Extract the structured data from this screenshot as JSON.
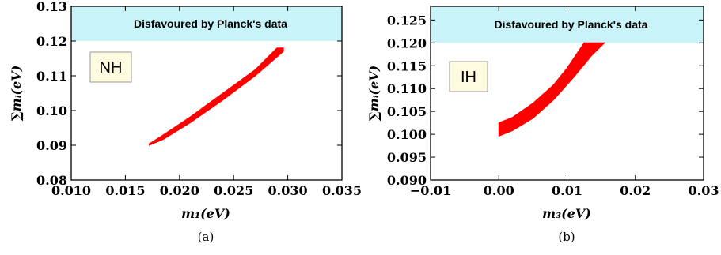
{
  "chart_data": [
    {
      "type": "area",
      "panel_tag": "NH",
      "caption": "(a)",
      "xlabel": "m₁(eV)",
      "ylabel": "∑mᵢ(eV)",
      "xlim": [
        0.01,
        0.035
      ],
      "ylim": [
        0.08,
        0.13
      ],
      "xticks": [
        "0.010",
        "0.015",
        "0.020",
        "0.025",
        "0.030",
        "0.035"
      ],
      "xtick_values": [
        0.01,
        0.015,
        0.02,
        0.025,
        0.03,
        0.035
      ],
      "yticks": [
        "0.08",
        "0.09",
        "0.10",
        "0.11",
        "0.12",
        "0.13"
      ],
      "ytick_values": [
        0.08,
        0.09,
        0.1,
        0.11,
        0.12,
        0.13
      ],
      "annotation": "Disfavoured by Planck's data",
      "excluded_region": {
        "y_from": 0.12,
        "y_to": 0.13,
        "color": "#c8f3f8"
      },
      "allowed_region_color": "#ff0000",
      "series": [
        {
          "lower": [
            [
              0.0172,
              0.09
            ],
            [
              0.0185,
              0.0917
            ],
            [
              0.021,
              0.0965
            ],
            [
              0.024,
              0.103
            ],
            [
              0.027,
              0.11
            ],
            [
              0.0296,
              0.117
            ],
            [
              0.0296,
              0.118
            ]
          ],
          "upper": [
            [
              0.0172,
              0.0904
            ],
            [
              0.0185,
              0.093
            ],
            [
              0.021,
              0.0982
            ],
            [
              0.024,
              0.105
            ],
            [
              0.027,
              0.1118
            ],
            [
              0.029,
              0.118
            ]
          ]
        }
      ],
      "grid": false
    },
    {
      "type": "area",
      "panel_tag": "IH",
      "caption": "(b)",
      "xlabel": "m₃(eV)",
      "ylabel": "∑mᵢ(eV)",
      "xlim": [
        -0.01,
        0.03
      ],
      "ylim": [
        0.09,
        0.128
      ],
      "xticks": [
        "−0.01",
        "0.00",
        "0.01",
        "0.02",
        "0.03"
      ],
      "xtick_values": [
        -0.01,
        0.0,
        0.01,
        0.02,
        0.03
      ],
      "yticks": [
        "0.090",
        "0.095",
        "0.100",
        "0.105",
        "0.110",
        "0.115",
        "0.120",
        "0.125"
      ],
      "ytick_values": [
        0.09,
        0.095,
        0.1,
        0.105,
        0.11,
        0.115,
        0.12,
        0.125
      ],
      "annotation": "Disfavoured by Planck's data",
      "excluded_region": {
        "y_from": 0.12,
        "y_to": 0.128,
        "color": "#c8f3f8"
      },
      "allowed_region_color": "#ff0000",
      "series": [
        {
          "lower": [
            [
              0.0,
              0.0996
            ],
            [
              0.002,
              0.1008
            ],
            [
              0.005,
              0.1035
            ],
            [
              0.008,
              0.1075
            ],
            [
              0.011,
              0.1125
            ],
            [
              0.0136,
              0.1172
            ],
            [
              0.0155,
              0.12
            ]
          ],
          "upper": [
            [
              0.0,
              0.1025
            ],
            [
              0.002,
              0.1037
            ],
            [
              0.005,
              0.1068
            ],
            [
              0.008,
              0.1108
            ],
            [
              0.01,
              0.1145
            ],
            [
              0.0125,
              0.12
            ]
          ]
        }
      ],
      "grid": false
    }
  ]
}
